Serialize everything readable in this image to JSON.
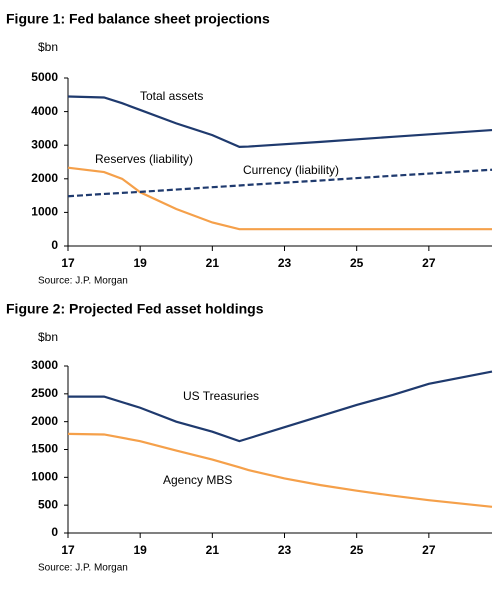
{
  "chart_data": [
    {
      "type": "line",
      "title": "Figure 1: Fed balance sheet projections",
      "y_label": "$bn",
      "source": "Source: J.P. Morgan",
      "x": [
        17,
        18,
        18.5,
        19,
        20,
        21,
        21.75,
        22,
        24,
        26,
        28.75
      ],
      "series": [
        {
          "name": "Total assets",
          "color": "#1f3a6e",
          "style": "solid",
          "values": [
            4450,
            4420,
            4250,
            4050,
            3650,
            3300,
            2950,
            2960,
            3100,
            3250,
            3450
          ]
        },
        {
          "name": "Reserves (liability)",
          "color": "#f5a04a",
          "style": "solid",
          "values": [
            2330,
            2200,
            2000,
            1600,
            1100,
            700,
            500,
            500,
            500,
            500,
            500
          ]
        },
        {
          "name": "Currency (liability)",
          "color": "#1f3a6e",
          "style": "dashed",
          "values": [
            1480,
            1550,
            1580,
            1610,
            1680,
            1750,
            1800,
            1820,
            1950,
            2090,
            2270
          ]
        }
      ],
      "xlim": [
        17,
        28.75
      ],
      "xticks": [
        17,
        19,
        21,
        23,
        25,
        27
      ],
      "ylim": [
        0,
        5000
      ],
      "yticks": [
        0,
        1000,
        2000,
        3000,
        4000,
        5000
      ],
      "grid": false
    },
    {
      "type": "line",
      "title": "Figure 2: Projected Fed asset holdings",
      "y_label": "$bn",
      "source": "Source: J.P. Morgan",
      "x": [
        17,
        18,
        19,
        20,
        21,
        21.75,
        22,
        23,
        24,
        25,
        26,
        27,
        28.75
      ],
      "series": [
        {
          "name": "US Treasuries",
          "color": "#1f3a6e",
          "style": "solid",
          "values": [
            2450,
            2450,
            2250,
            2000,
            1820,
            1650,
            1700,
            1900,
            2100,
            2300,
            2480,
            2680,
            2900
          ]
        },
        {
          "name": "Agency MBS",
          "color": "#f5a04a",
          "style": "solid",
          "values": [
            1780,
            1770,
            1650,
            1480,
            1320,
            1180,
            1130,
            980,
            860,
            760,
            670,
            590,
            470
          ]
        }
      ],
      "xlim": [
        17,
        28.75
      ],
      "xticks": [
        17,
        19,
        21,
        23,
        25,
        27
      ],
      "ylim": [
        0,
        3000
      ],
      "yticks": [
        0,
        500,
        1000,
        1500,
        2000,
        2500,
        3000
      ],
      "grid": false
    }
  ]
}
